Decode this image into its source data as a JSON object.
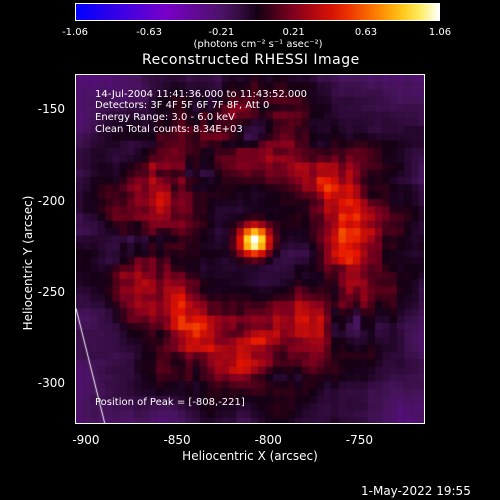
{
  "colorbar": {
    "ticks": [
      "-1.06",
      "-0.63",
      "-0.21",
      "0.21",
      "0.63",
      "1.06"
    ],
    "tick_values": [
      -1.06,
      -0.63,
      -0.21,
      0.21,
      0.63,
      1.06
    ],
    "unit_label": "(photons cm⁻² s⁻¹ asec⁻²)"
  },
  "plot": {
    "title": "Reconstructed RHESSI Image",
    "info_lines": [
      "14-Jul-2004 11:41:36.000 to 11:43:52.000",
      "Detectors: 3F 4F 5F 6F 7F 8F, Att 0",
      "Energy Range: 3.0 - 6.0 keV",
      "Clean      Total counts: 8.34E+03"
    ],
    "peak_text": "Position of Peak = [-808,-221]",
    "x_title": "Heliocentric X (arcsec)",
    "y_title": "Heliocentric Y (arcsec)",
    "x_ticks": [
      "-900",
      "-850",
      "-800",
      "-750"
    ],
    "x_tick_values": [
      -900,
      -850,
      -800,
      -750
    ],
    "y_ticks": [
      "-150",
      "-200",
      "-250",
      "-300"
    ],
    "y_tick_values": [
      -150,
      -200,
      -250,
      -300
    ],
    "xlim": [
      -906,
      -714
    ],
    "ylim": [
      -322,
      -130
    ],
    "peak": [
      -808,
      -221
    ],
    "limb_line": [
      [
        -906,
        -258
      ],
      [
        -890,
        -322
      ]
    ]
  },
  "footer": {
    "timestamp": "1-May-2022 19:55"
  }
}
